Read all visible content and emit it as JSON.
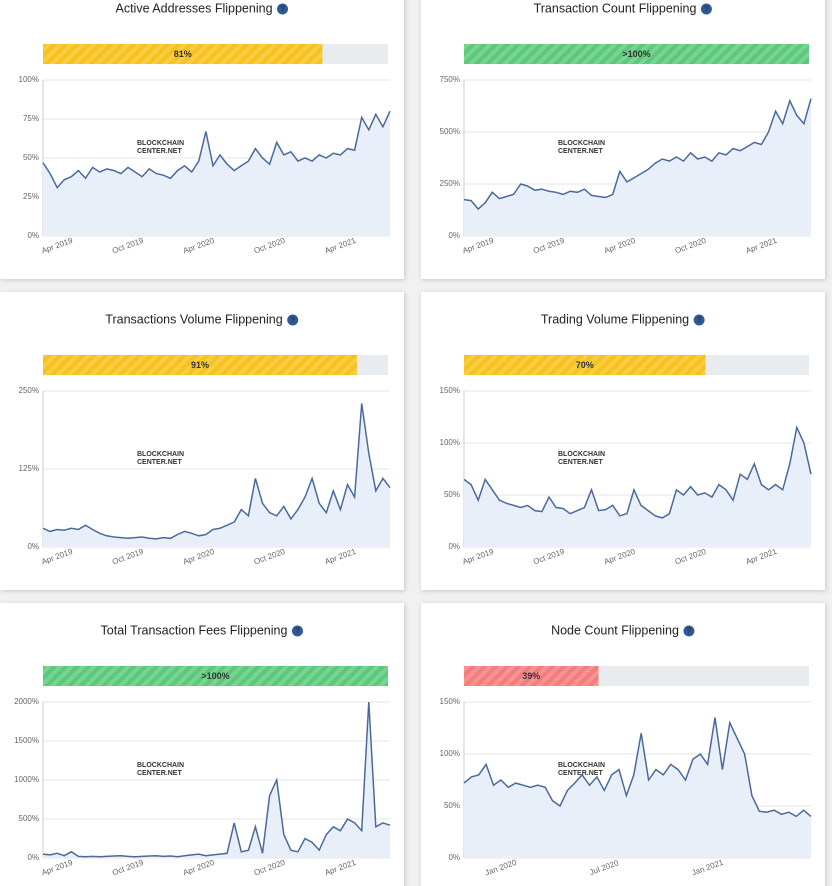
{
  "watermark": [
    "BLOCKCHAIN",
    "CENTER.NET"
  ],
  "chart_data": [
    {
      "type": "line",
      "title": "Active Addresses Flippening",
      "progress": {
        "value": 81,
        "label": "81%"
      },
      "progress_color": "#f7c21c",
      "color": "#4a6a9c",
      "fill": "#e9eff9",
      "categories": [
        null,
        null,
        "Apr 2019",
        null,
        null,
        null,
        null,
        null,
        null,
        null,
        null,
        null,
        "Oct 2019",
        null,
        null,
        null,
        null,
        null,
        null,
        null,
        null,
        null,
        "Apr 2020",
        null,
        null,
        null,
        null,
        null,
        null,
        null,
        null,
        null,
        "Oct 2020",
        null,
        null,
        null,
        null,
        null,
        null,
        null,
        null,
        null,
        "Apr 2021",
        null,
        null,
        null,
        null,
        null,
        null,
        null
      ],
      "values": [
        47,
        40,
        31,
        36,
        38,
        42,
        37,
        44,
        41,
        43,
        42,
        40,
        44,
        41,
        38,
        43,
        40,
        39,
        37,
        42,
        45,
        41,
        48,
        67,
        45,
        52,
        46,
        42,
        45,
        48,
        56,
        50,
        46,
        60,
        52,
        54,
        48,
        50,
        48,
        52,
        50,
        53,
        52,
        56,
        55,
        76,
        68,
        78,
        70,
        80
      ],
      "ylim": [
        0,
        100
      ],
      "yticks": [
        {
          "value": 0,
          "label": "0%"
        },
        {
          "value": 25,
          "label": "25%"
        },
        {
          "value": 50,
          "label": "50%"
        },
        {
          "value": 75,
          "label": "75%"
        },
        {
          "value": 100,
          "label": "100%"
        }
      ],
      "grid": true
    },
    {
      "type": "line",
      "title": "Transaction Count Flippening",
      "progress": {
        "value": 100,
        "label": ">100%"
      },
      "progress_color": "#5cc97a",
      "color": "#4a6a9c",
      "fill": "#e9eff9",
      "categories": [
        null,
        null,
        "Apr 2019",
        null,
        null,
        null,
        null,
        null,
        null,
        null,
        null,
        null,
        "Oct 2019",
        null,
        null,
        null,
        null,
        null,
        null,
        null,
        null,
        null,
        "Apr 2020",
        null,
        null,
        null,
        null,
        null,
        null,
        null,
        null,
        null,
        "Oct 2020",
        null,
        null,
        null,
        null,
        null,
        null,
        null,
        null,
        null,
        "Apr 2021",
        null,
        null,
        null,
        null,
        null,
        null,
        null
      ],
      "values": [
        175,
        170,
        130,
        160,
        210,
        180,
        190,
        200,
        250,
        240,
        220,
        225,
        215,
        210,
        200,
        215,
        210,
        225,
        195,
        190,
        185,
        200,
        310,
        260,
        280,
        300,
        320,
        350,
        370,
        360,
        380,
        360,
        400,
        370,
        380,
        360,
        400,
        390,
        420,
        410,
        430,
        450,
        440,
        500,
        600,
        540,
        650,
        580,
        540,
        660
      ],
      "ylim": [
        0,
        750
      ],
      "yticks": [
        {
          "value": 0,
          "label": "0%"
        },
        {
          "value": 250,
          "label": "250%"
        },
        {
          "value": 500,
          "label": "500%"
        },
        {
          "value": 750,
          "label": "750%"
        }
      ],
      "grid": true
    },
    {
      "type": "line",
      "title": "Transactions Volume Flippening",
      "progress": {
        "value": 91,
        "label": "91%"
      },
      "progress_color": "#f7c21c",
      "color": "#4a6a9c",
      "fill": "#e9eff9",
      "categories": [
        null,
        null,
        "Apr 2019",
        null,
        null,
        null,
        null,
        null,
        null,
        null,
        null,
        null,
        "Oct 2019",
        null,
        null,
        null,
        null,
        null,
        null,
        null,
        null,
        null,
        "Apr 2020",
        null,
        null,
        null,
        null,
        null,
        null,
        null,
        null,
        null,
        "Oct 2020",
        null,
        null,
        null,
        null,
        null,
        null,
        null,
        null,
        null,
        "Apr 2021",
        null,
        null,
        null,
        null,
        null,
        null,
        null
      ],
      "values": [
        30,
        25,
        28,
        27,
        30,
        28,
        35,
        28,
        22,
        18,
        16,
        15,
        14,
        15,
        16,
        14,
        13,
        15,
        14,
        20,
        25,
        22,
        18,
        20,
        28,
        30,
        35,
        40,
        60,
        50,
        110,
        70,
        55,
        50,
        65,
        45,
        60,
        80,
        110,
        70,
        55,
        90,
        60,
        100,
        80,
        230,
        150,
        90,
        110,
        95
      ],
      "ylim": [
        0,
        250
      ],
      "yticks": [
        {
          "value": 0,
          "label": "0%"
        },
        {
          "value": 125,
          "label": "125%"
        },
        {
          "value": 250,
          "label": "250%"
        }
      ],
      "grid": true
    },
    {
      "type": "line",
      "title": "Trading Volume Flippening",
      "progress": {
        "value": 70,
        "label": "70%"
      },
      "progress_color": "#f7c21c",
      "color": "#4a6a9c",
      "fill": "#e9eff9",
      "categories": [
        null,
        null,
        "Apr 2019",
        null,
        null,
        null,
        null,
        null,
        null,
        null,
        null,
        null,
        "Oct 2019",
        null,
        null,
        null,
        null,
        null,
        null,
        null,
        null,
        null,
        "Apr 2020",
        null,
        null,
        null,
        null,
        null,
        null,
        null,
        null,
        null,
        "Oct 2020",
        null,
        null,
        null,
        null,
        null,
        null,
        null,
        null,
        null,
        "Apr 2021",
        null,
        null,
        null,
        null,
        null,
        null,
        null
      ],
      "values": [
        65,
        60,
        45,
        65,
        55,
        45,
        42,
        40,
        38,
        40,
        35,
        34,
        48,
        38,
        37,
        32,
        35,
        38,
        55,
        35,
        36,
        40,
        30,
        32,
        55,
        40,
        35,
        30,
        28,
        32,
        55,
        50,
        58,
        50,
        52,
        48,
        60,
        55,
        45,
        70,
        65,
        80,
        60,
        55,
        60,
        55,
        80,
        115,
        100,
        70
      ],
      "ylim": [
        0,
        150
      ],
      "yticks": [
        {
          "value": 0,
          "label": "0%"
        },
        {
          "value": 50,
          "label": "50%"
        },
        {
          "value": 100,
          "label": "100%"
        },
        {
          "value": 150,
          "label": "150%"
        }
      ],
      "grid": true
    },
    {
      "type": "line",
      "title": "Total Transaction Fees Flippening",
      "progress": {
        "value": 100,
        "label": ">100%"
      },
      "progress_color": "#5cc97a",
      "color": "#4a6a9c",
      "fill": "#e9eff9",
      "categories": [
        null,
        null,
        "Apr 2019",
        null,
        null,
        null,
        null,
        null,
        null,
        null,
        null,
        null,
        "Oct 2019",
        null,
        null,
        null,
        null,
        null,
        null,
        null,
        null,
        null,
        "Apr 2020",
        null,
        null,
        null,
        null,
        null,
        null,
        null,
        null,
        null,
        "Oct 2020",
        null,
        null,
        null,
        null,
        null,
        null,
        null,
        null,
        null,
        "Apr 2021",
        null,
        null,
        null,
        null,
        null,
        null,
        null
      ],
      "values": [
        50,
        40,
        60,
        30,
        80,
        20,
        15,
        20,
        15,
        20,
        25,
        30,
        20,
        15,
        20,
        25,
        30,
        20,
        25,
        15,
        30,
        40,
        50,
        30,
        40,
        50,
        60,
        450,
        80,
        100,
        400,
        60,
        800,
        1000,
        300,
        100,
        80,
        250,
        200,
        100,
        300,
        400,
        350,
        500,
        450,
        350,
        2000,
        400,
        450,
        420
      ],
      "ylim": [
        0,
        2000
      ],
      "yticks": [
        {
          "value": 0,
          "label": "0%"
        },
        {
          "value": 500,
          "label": "500%"
        },
        {
          "value": 1000,
          "label": "1000%"
        },
        {
          "value": 1500,
          "label": "1500%"
        },
        {
          "value": 2000,
          "label": "2000%"
        }
      ],
      "grid": true
    },
    {
      "type": "line",
      "title": "Node Count Flippening",
      "progress": {
        "value": 39,
        "label": "39%"
      },
      "progress_color": "#f47c7c",
      "color": "#4a6a9c",
      "fill": "#e9eff9",
      "categories": [
        null,
        null,
        null,
        null,
        null,
        "Jan 2020",
        null,
        null,
        null,
        null,
        null,
        null,
        null,
        null,
        null,
        null,
        null,
        null,
        null,
        "Jul 2020",
        null,
        null,
        null,
        null,
        null,
        null,
        null,
        null,
        null,
        null,
        null,
        null,
        null,
        "Jan 2021",
        null,
        null,
        null,
        null,
        null,
        null,
        null,
        null,
        null,
        null,
        null,
        null,
        null,
        null
      ],
      "values": [
        72,
        78,
        80,
        90,
        70,
        75,
        68,
        72,
        70,
        68,
        70,
        68,
        55,
        50,
        65,
        72,
        80,
        70,
        78,
        65,
        80,
        85,
        60,
        80,
        120,
        75,
        85,
        80,
        90,
        85,
        75,
        95,
        100,
        90,
        135,
        85,
        130,
        115,
        100,
        60,
        45,
        44,
        46,
        42,
        44,
        40,
        46,
        40
      ],
      "ylim": [
        0,
        150
      ],
      "yticks": [
        {
          "value": 0,
          "label": "0%"
        },
        {
          "value": 50,
          "label": "50%"
        },
        {
          "value": 100,
          "label": "100%"
        },
        {
          "value": 150,
          "label": "150%"
        }
      ],
      "grid": true
    }
  ]
}
